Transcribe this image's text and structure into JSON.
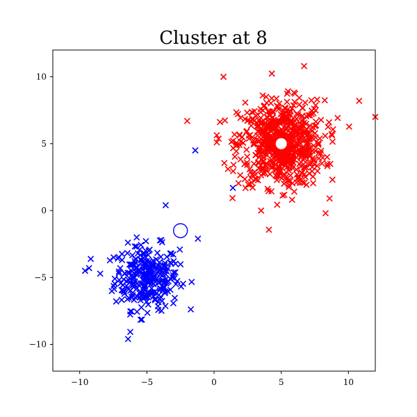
{
  "chart_data": {
    "type": "scatter",
    "title": "Cluster at 8",
    "xlabel": "",
    "ylabel": "",
    "xlim": [
      -12,
      12
    ],
    "ylim": [
      -12,
      12
    ],
    "xticks": [
      -10,
      -5,
      0,
      5,
      10
    ],
    "yticks": [
      -10,
      -5,
      0,
      5,
      10
    ],
    "xtick_labels": [
      "−10",
      "−5",
      "0",
      "5",
      "10"
    ],
    "ytick_labels": [
      "−10",
      "−5",
      "0",
      "5",
      "10"
    ],
    "grid": false,
    "legend": "none",
    "series": [
      {
        "color": "#0000ff",
        "marker": "x",
        "center": [
          -5,
          -5
        ],
        "spread": 1.2,
        "count": 300,
        "outliers": [
          [
            -2.5,
            -1.3
          ],
          [
            -1.2,
            -2.1
          ],
          [
            -1.4,
            4.5
          ],
          [
            1.4,
            1.7
          ],
          [
            -3.6,
            0.4
          ],
          [
            -9.6,
            -4.5
          ],
          [
            -9.3,
            -4.3
          ],
          [
            -6.4,
            -9.6
          ]
        ]
      },
      {
        "color": "#ff0000",
        "marker": "x",
        "center": [
          5,
          5
        ],
        "spread": 1.6,
        "count": 700,
        "outliers": [
          [
            -2.0,
            6.7
          ],
          [
            0.7,
            10.0
          ],
          [
            6.7,
            10.8
          ],
          [
            12.0,
            7.0
          ],
          [
            10.8,
            8.2
          ],
          [
            3.5,
            0.0
          ],
          [
            8.3,
            -0.2
          ],
          [
            0.2,
            5.1
          ]
        ]
      }
    ],
    "centroids": [
      {
        "x": -2.5,
        "y": -1.5,
        "color": "#0000ff",
        "style": "hollow"
      },
      {
        "x": 5.0,
        "y": 5.0,
        "color": "#ff0000",
        "style": "filled-white"
      }
    ]
  }
}
